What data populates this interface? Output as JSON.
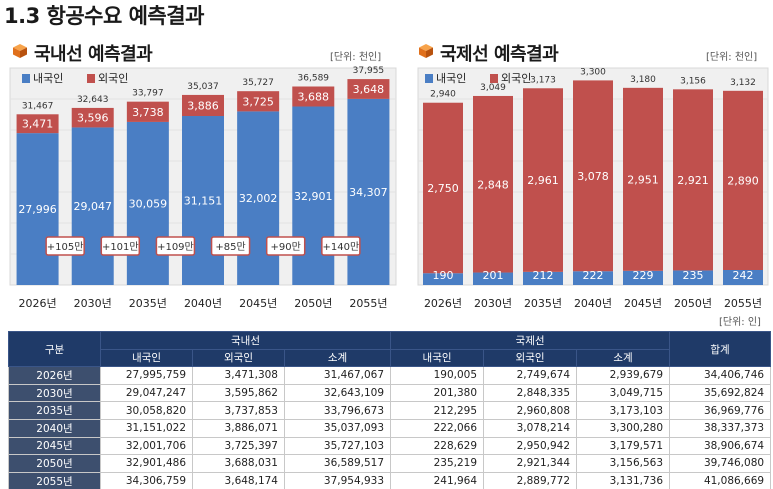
{
  "page_title": "1.3 항공수요 예측결과",
  "domestic": {
    "title": "국내선 예측결과",
    "unit": "[단위: 천인]",
    "legend": [
      "내국인",
      "외국인"
    ],
    "colors": {
      "local": "#4a7ec4",
      "foreign": "#c0504d",
      "bg": "#f0f0f0"
    },
    "increments": [
      "+105만",
      "+101만",
      "+109만",
      "+85만",
      "+90만",
      "+140만"
    ]
  },
  "international": {
    "title": "국제선 예측결과",
    "unit": "[단위: 천인]",
    "legend": [
      "내국인",
      "외국인"
    ],
    "colors": {
      "local": "#4a7ec4",
      "foreign": "#c0504d",
      "bg": "#f0f0f0"
    }
  },
  "chart_data": [
    {
      "type": "bar",
      "stacked": true,
      "title": "국내선 예측결과",
      "categories": [
        "2026년",
        "2030년",
        "2035년",
        "2040년",
        "2045년",
        "2050년",
        "2055년"
      ],
      "series": [
        {
          "name": "내국인",
          "values": [
            27996,
            29047,
            30059,
            31151,
            32002,
            32901,
            34307
          ],
          "labels": [
            "27,996",
            "29,047",
            "30,059",
            "31,151",
            "32,002",
            "32,901",
            "34,307"
          ]
        },
        {
          "name": "외국인",
          "values": [
            3471,
            3596,
            3738,
            3886,
            3725,
            3688,
            3648
          ],
          "labels": [
            "3,471",
            "3,596",
            "3,738",
            "3,886",
            "3,725",
            "3,688",
            "3,648"
          ]
        }
      ],
      "totals": [
        "31,467",
        "32,643",
        "33,797",
        "35,037",
        "35,727",
        "36,589",
        "37,955"
      ],
      "ylim": [
        0,
        40000
      ]
    },
    {
      "type": "bar",
      "stacked": true,
      "title": "국제선 예측결과",
      "categories": [
        "2026년",
        "2030년",
        "2035년",
        "2040년",
        "2045년",
        "2050년",
        "2055년"
      ],
      "series": [
        {
          "name": "내국인",
          "values": [
            190,
            201,
            212,
            222,
            229,
            235,
            242
          ],
          "labels": [
            "190",
            "201",
            "212",
            "222",
            "229",
            "235",
            "242"
          ]
        },
        {
          "name": "외국인",
          "values": [
            2750,
            2848,
            2961,
            3078,
            2951,
            2921,
            2890
          ],
          "labels": [
            "2,750",
            "2,848",
            "2,961",
            "3,078",
            "2,951",
            "2,921",
            "2,890"
          ]
        }
      ],
      "totals": [
        "2,940",
        "3,049",
        "3,173",
        "3,300",
        "3,180",
        "3,156",
        "3,132"
      ],
      "ylim": [
        0,
        3500
      ]
    }
  ],
  "table": {
    "unit": "[단위: 인]",
    "head_group": "구분",
    "domestic_label": "국내선",
    "international_label": "국제선",
    "total_label": "합계",
    "sub_headers": [
      "내국인",
      "외국인",
      "소계",
      "내국인",
      "외국인",
      "소계"
    ],
    "rows": [
      [
        "2026년",
        "27,995,759",
        "3,471,308",
        "31,467,067",
        "190,005",
        "2,749,674",
        "2,939,679",
        "34,406,746"
      ],
      [
        "2030년",
        "29,047,247",
        "3,595,862",
        "32,643,109",
        "201,380",
        "2,848,335",
        "3,049,715",
        "35,692,824"
      ],
      [
        "2035년",
        "30,058,820",
        "3,737,853",
        "33,796,673",
        "212,295",
        "2,960,808",
        "3,173,103",
        "36,969,776"
      ],
      [
        "2040년",
        "31,151,022",
        "3,886,071",
        "35,037,093",
        "222,066",
        "3,078,214",
        "3,300,280",
        "38,337,373"
      ],
      [
        "2045년",
        "32,001,706",
        "3,725,397",
        "35,727,103",
        "228,629",
        "2,950,942",
        "3,179,571",
        "38,906,674"
      ],
      [
        "2050년",
        "32,901,486",
        "3,688,031",
        "36,589,517",
        "235,219",
        "2,921,344",
        "3,156,563",
        "39,746,080"
      ],
      [
        "2055년",
        "34,306,759",
        "3,648,174",
        "37,954,933",
        "241,964",
        "2,889,772",
        "3,131,736",
        "41,086,669"
      ]
    ]
  }
}
